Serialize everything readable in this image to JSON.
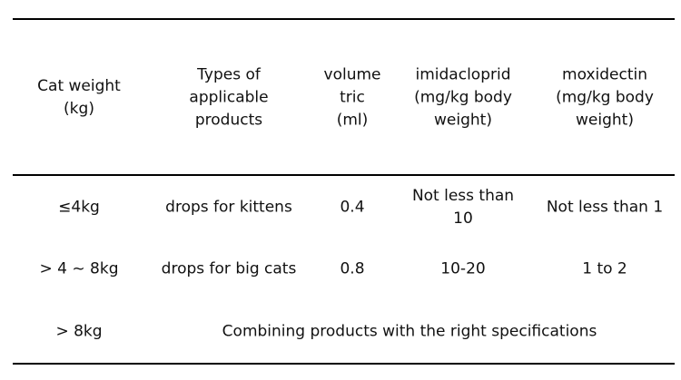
{
  "table": {
    "header": [
      [
        "Cat weight",
        "(kg)"
      ],
      [
        "Types of",
        "applicable",
        "products"
      ],
      [
        "volume",
        "tric",
        "(ml)"
      ],
      [
        "imidacloprid",
        "(mg/kg body",
        "weight)"
      ],
      [
        "moxidectin",
        "(mg/kg body",
        "weight)"
      ]
    ],
    "rows": [
      [
        [
          "≤4kg"
        ],
        [
          "drops for kittens"
        ],
        [
          "0.4"
        ],
        [
          "Not less than",
          "10"
        ],
        [
          "Not less than 1"
        ]
      ],
      [
        [
          "> 4 ~ 8kg"
        ],
        [
          "drops for big cats"
        ],
        [
          "0.8"
        ],
        [
          "10-20"
        ],
        [
          "1 to 2"
        ]
      ],
      [
        [
          "> 8kg"
        ],
        [
          "Combining products with the right specifications"
        ]
      ]
    ]
  }
}
